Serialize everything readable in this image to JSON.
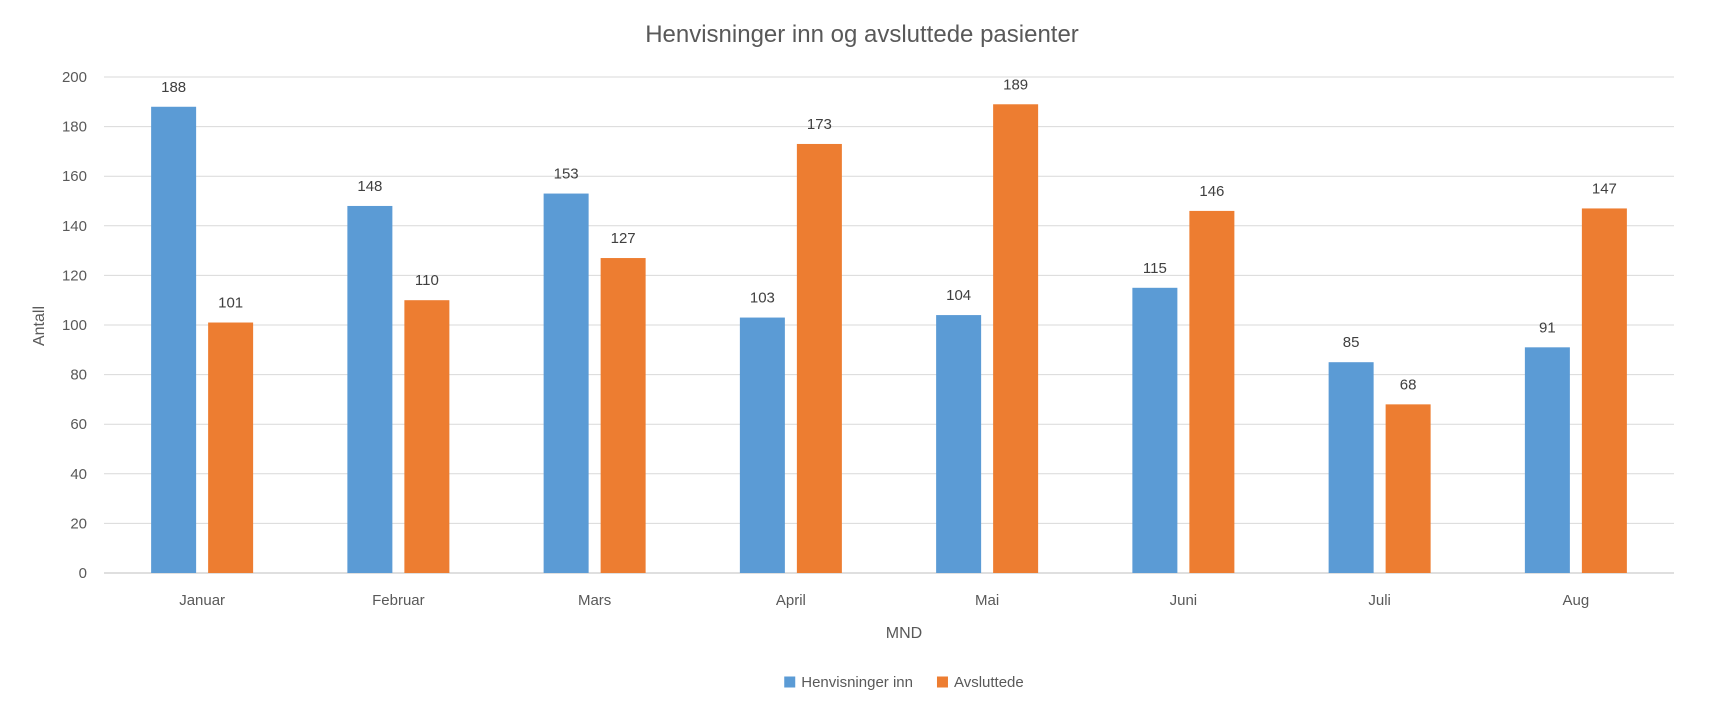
{
  "chart_data": {
    "type": "bar",
    "title": "Henvisninger inn og avsluttede pasienter",
    "xlabel": "MND",
    "ylabel": "Antall",
    "categories": [
      "Januar",
      "Februar",
      "Mars",
      "April",
      "Mai",
      "Juni",
      "Juli",
      "Aug"
    ],
    "series": [
      {
        "name": "Henvisninger inn",
        "color": "#5b9bd5",
        "values": [
          188,
          148,
          153,
          103,
          104,
          115,
          85,
          91
        ]
      },
      {
        "name": "Avsluttede",
        "color": "#ed7d31",
        "values": [
          101,
          110,
          127,
          173,
          189,
          146,
          68,
          147
        ]
      }
    ],
    "ylim": [
      0,
      200
    ],
    "yticks": [
      0,
      20,
      40,
      60,
      80,
      100,
      120,
      140,
      160,
      180,
      200
    ],
    "grid": true,
    "legend_position": "bottom"
  }
}
